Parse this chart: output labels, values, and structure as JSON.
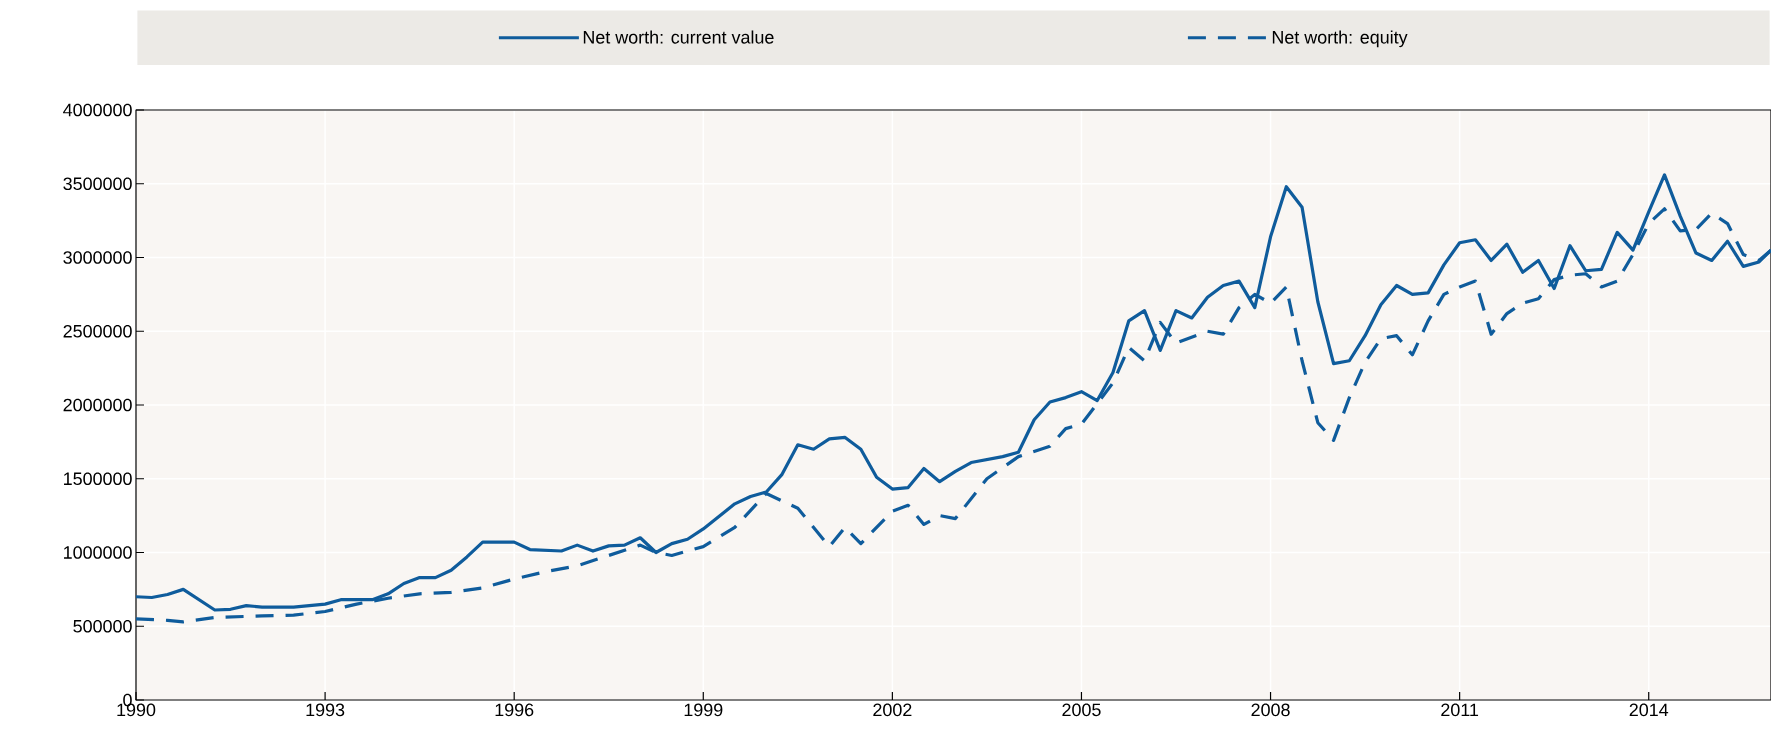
{
  "chart_data": {
    "type": "line",
    "xlim": [
      1990,
      2015.94
    ],
    "ylim": [
      0,
      4000000
    ],
    "xticks": [
      1990,
      1993,
      1996,
      1999,
      2002,
      2005,
      2008,
      2011,
      2014
    ],
    "yticks": [
      0,
      500000,
      1000000,
      1500000,
      2000000,
      2500000,
      3000000,
      3500000,
      4000000
    ],
    "grid": true,
    "legend": "top",
    "series": [
      {
        "name": "Net worth: current value",
        "color": "#0f5c9c",
        "line_style": "solid",
        "x": [
          1990,
          1990.25,
          1990.5,
          1990.75,
          1991,
          1991.25,
          1991.5,
          1991.75,
          1992,
          1992.5,
          1993,
          1993.25,
          1993.75,
          1994,
          1994.25,
          1994.5,
          1994.75,
          1995,
          1995.25,
          1995.5,
          1996,
          1996.25,
          1996.75,
          1997,
          1997.25,
          1997.5,
          1997.75,
          1998,
          1998.25,
          1998.5,
          1998.75,
          1999,
          1999.5,
          1999.75,
          2000,
          2000.25,
          2000.5,
          2000.75,
          2001,
          2001.25,
          2001.5,
          2001.75,
          2002,
          2002.25,
          2002.5,
          2002.75,
          2003,
          2003.25,
          2003.75,
          2004,
          2004.25,
          2004.5,
          2004.75,
          2005,
          2005.25,
          2005.5,
          2005.75,
          2006,
          2006.25,
          2006.5,
          2006.75,
          2007,
          2007.25,
          2007.5,
          2007.75,
          2008,
          2008.25,
          2008.5,
          2008.75,
          2009,
          2009.25,
          2009.5,
          2009.75,
          2010,
          2010.25,
          2010.5,
          2010.75,
          2011,
          2011.25,
          2011.5,
          2011.75,
          2012,
          2012.25,
          2012.5,
          2012.75,
          2013,
          2013.25,
          2013.5,
          2013.75,
          2014,
          2014.25,
          2014.5,
          2014.75,
          2015,
          2015.25,
          2015.5,
          2015.75,
          2015.94
        ],
        "values": [
          700000,
          695000,
          715000,
          750000,
          680000,
          610000,
          615000,
          640000,
          630000,
          630000,
          650000,
          680000,
          680000,
          720000,
          790000,
          830000,
          830000,
          880000,
          970000,
          1070000,
          1070000,
          1020000,
          1010000,
          1050000,
          1010000,
          1045000,
          1050000,
          1100000,
          1000000,
          1060000,
          1090000,
          1160000,
          1330000,
          1380000,
          1410000,
          1530000,
          1730000,
          1700000,
          1770000,
          1780000,
          1700000,
          1510000,
          1430000,
          1440000,
          1570000,
          1480000,
          1550000,
          1610000,
          1650000,
          1680000,
          1900000,
          2020000,
          2050000,
          2090000,
          2030000,
          2220000,
          2570000,
          2640000,
          2370000,
          2640000,
          2590000,
          2730000,
          2810000,
          2840000,
          2660000,
          3140000,
          3480000,
          3340000,
          2700000,
          2280000,
          2300000,
          2470000,
          2680000,
          2810000,
          2750000,
          2760000,
          2950000,
          3100000,
          3120000,
          2980000,
          3090000,
          2900000,
          2980000,
          2790000,
          3080000,
          2910000,
          2920000,
          3170000,
          3050000,
          3310000,
          3560000,
          3280000,
          3030000,
          2980000,
          3110000,
          2940000,
          2970000,
          3050000
        ]
      },
      {
        "name": "Net worth: equity",
        "color": "#0f5c9c",
        "line_style": "dashed",
        "x": [
          1990,
          1990.5,
          1990.75,
          1991.25,
          1992,
          1992.5,
          1993,
          1993.5,
          1994,
          1994.5,
          1995,
          1995.5,
          1996,
          1996.5,
          1997,
          1997.5,
          1998,
          1998.25,
          1998.5,
          1999,
          1999.5,
          2000,
          2000.5,
          2001,
          2001.25,
          2001.5,
          2002,
          2002.25,
          2002.5,
          2002.75,
          2003,
          2003.5,
          2004,
          2004.5,
          2004.75,
          2005,
          2005.5,
          2005.75,
          2006,
          2006.25,
          2006.5,
          2007,
          2007.25,
          2007.5,
          2007.75,
          2008,
          2008.25,
          2008.5,
          2008.75,
          2009,
          2009.25,
          2009.5,
          2009.75,
          2010,
          2010.25,
          2010.5,
          2010.75,
          2011,
          2011.25,
          2011.5,
          2011.75,
          2012,
          2012.25,
          2012.5,
          2012.75,
          2013,
          2013.25,
          2013.5,
          2013.75,
          2014,
          2014.25,
          2014.5,
          2014.75,
          2015,
          2015.25,
          2015.5,
          2015.75,
          2015.94
        ],
        "values": [
          550000,
          540000,
          530000,
          560000,
          570000,
          575000,
          600000,
          650000,
          690000,
          720000,
          730000,
          760000,
          820000,
          870000,
          910000,
          980000,
          1050000,
          1000000,
          980000,
          1040000,
          1170000,
          1400000,
          1300000,
          1040000,
          1170000,
          1060000,
          1280000,
          1320000,
          1190000,
          1250000,
          1230000,
          1500000,
          1650000,
          1720000,
          1840000,
          1870000,
          2150000,
          2390000,
          2300000,
          2560000,
          2420000,
          2500000,
          2480000,
          2660000,
          2750000,
          2690000,
          2800000,
          2300000,
          1880000,
          1760000,
          2050000,
          2290000,
          2450000,
          2470000,
          2340000,
          2570000,
          2750000,
          2800000,
          2840000,
          2480000,
          2620000,
          2690000,
          2720000,
          2850000,
          2880000,
          2890000,
          2800000,
          2840000,
          3020000,
          3230000,
          3330000,
          3180000,
          3190000,
          3300000,
          3230000,
          3020000,
          2980000,
          3050000
        ]
      }
    ]
  }
}
